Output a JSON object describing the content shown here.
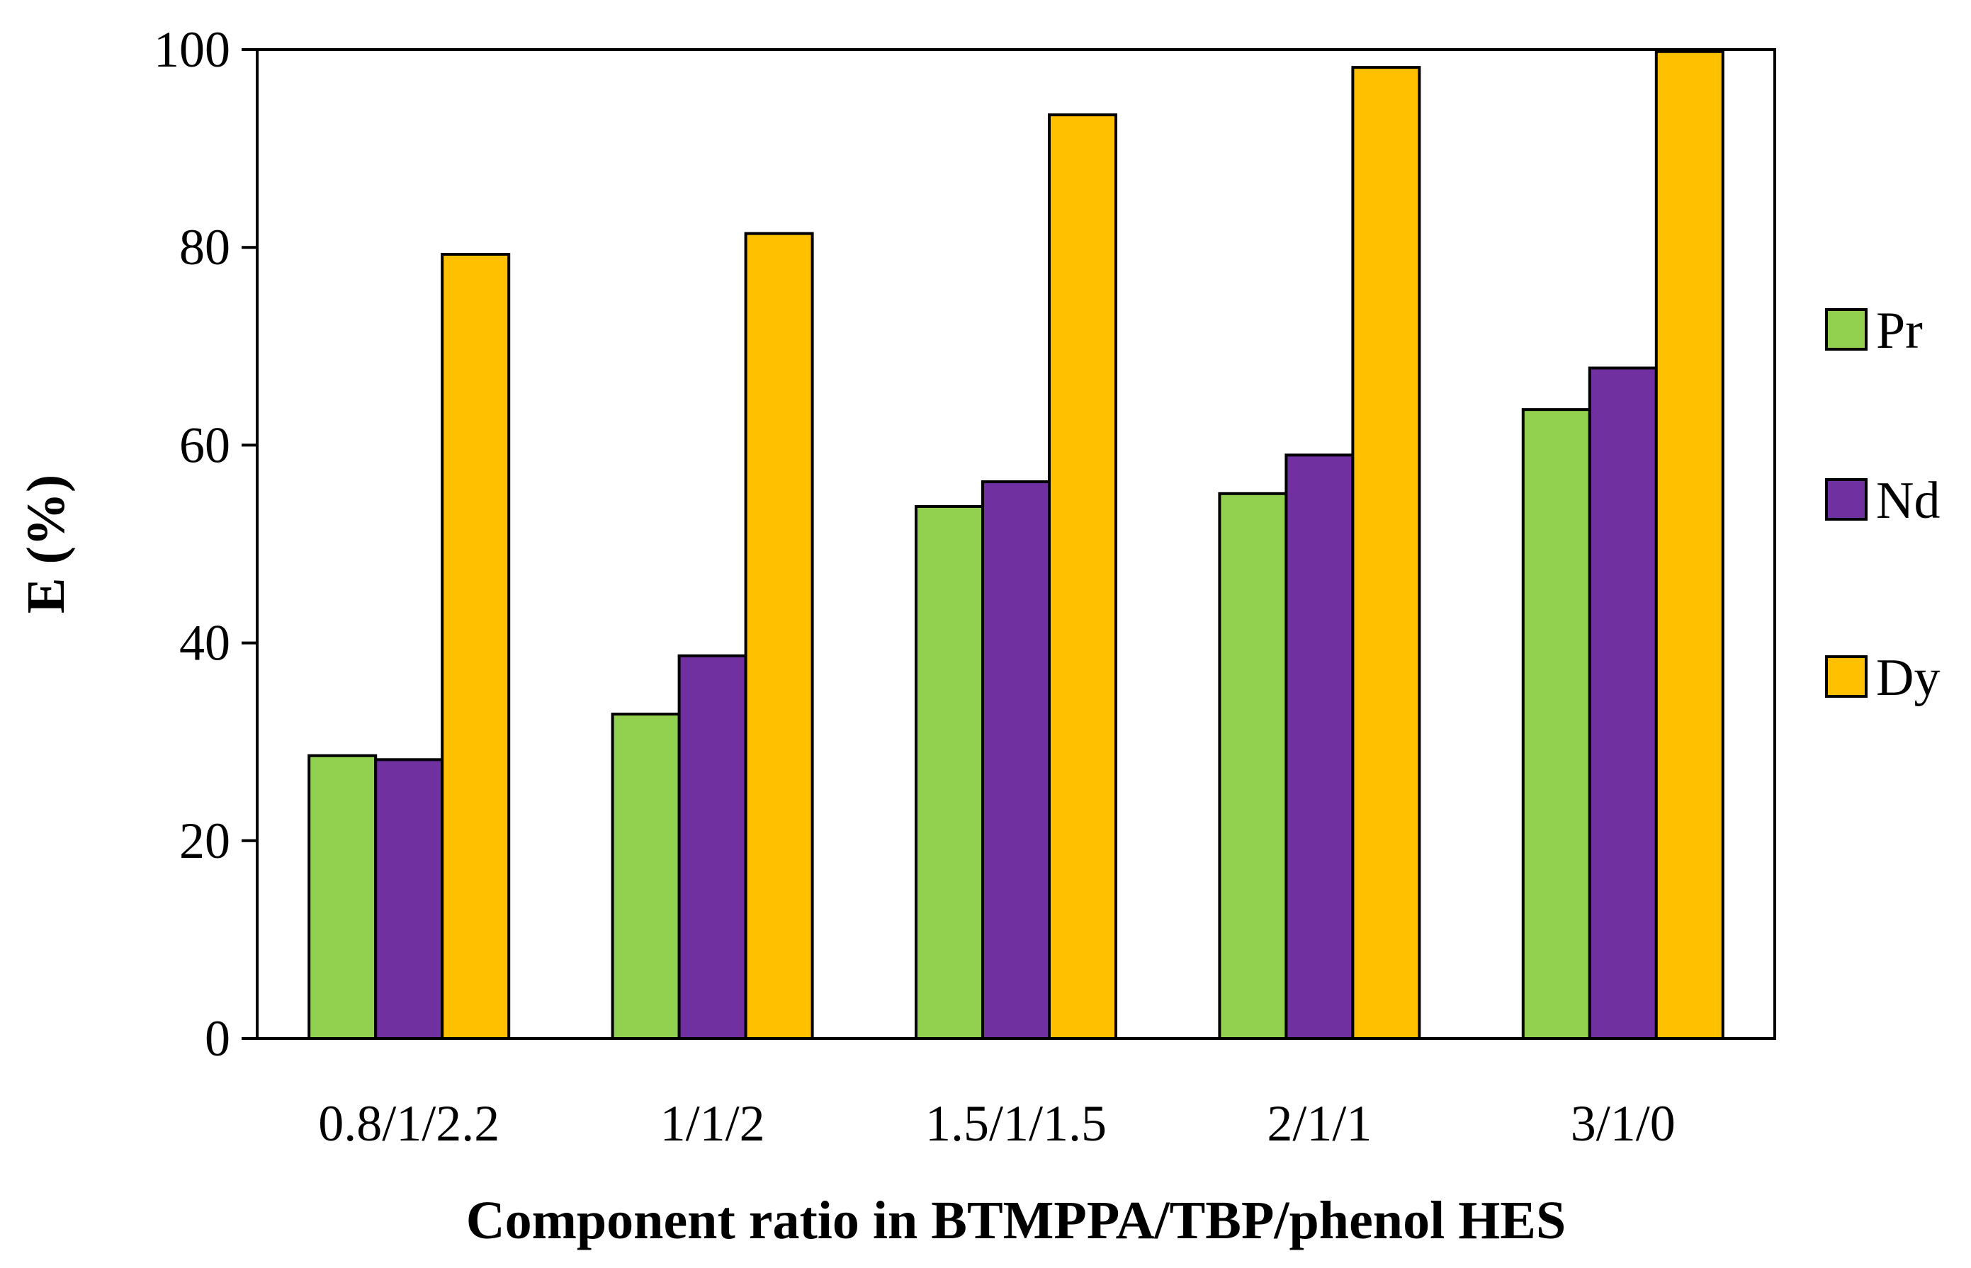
{
  "chart_data": {
    "type": "bar",
    "title": "",
    "xlabel": "Component ratio in BTMPPA/TBP/phenol HES",
    "ylabel": "E (%)",
    "ylim": [
      0,
      100
    ],
    "yticks": [
      0,
      20,
      40,
      60,
      80,
      100
    ],
    "categories": [
      "0.8/1/2.2",
      "1/1/2",
      "1.5/1/1.5",
      "2/1/1",
      "3/1/0"
    ],
    "series": [
      {
        "name": "Pr",
        "color": "#92d050",
        "values": [
          28.6,
          32.8,
          53.8,
          55.1,
          63.6
        ]
      },
      {
        "name": "Nd",
        "color": "#7030a0",
        "values": [
          28.2,
          38.7,
          56.3,
          59.0,
          67.8
        ]
      },
      {
        "name": "Dy",
        "color": "#ffc000",
        "values": [
          79.3,
          81.4,
          93.4,
          98.2,
          99.8
        ]
      }
    ],
    "grid": false,
    "legend_position": "right"
  }
}
